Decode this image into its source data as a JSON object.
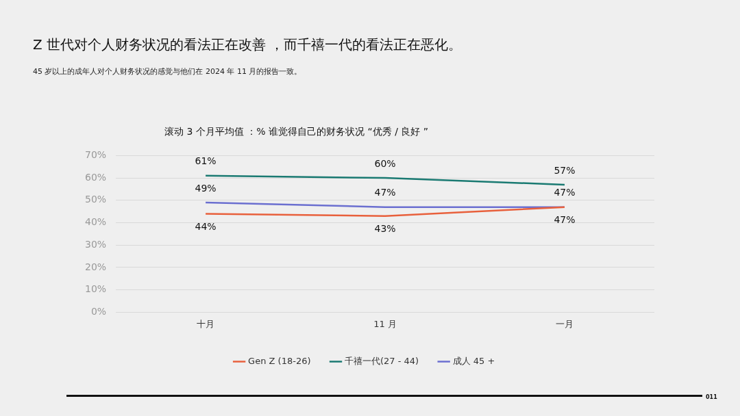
{
  "chart_data": {
    "type": "line",
    "title": "Z 世代对个人财务状况的看法正在改善 ，而千禧一代的看法正在恶化。",
    "subtitle": "45 岁以上的成年人对个人财务状况的感觉与他们在 2024 年 11 月的报告一致。",
    "annotations": [
      "滚动 3 个月平均值 ：% 谁觉得自己的财务状况 “优秀 / 良好 ”",
      "011"
    ],
    "categories": [
      "十月",
      "11 月",
      "一月"
    ],
    "series": [
      {
        "name": "Gen Z (18-26)",
        "color": "#e8603c",
        "values": [
          44,
          43,
          47
        ],
        "value_labels": [
          "44%",
          "43%",
          "47%"
        ]
      },
      {
        "name": "千禧一代(27 - 44)",
        "color": "#1a7a72",
        "values": [
          61,
          60,
          57
        ],
        "value_labels": [
          "61%",
          "60%",
          "57%"
        ]
      },
      {
        "name": "成人 45 +",
        "color": "#6b6fd0",
        "values": [
          49,
          47,
          47
        ],
        "value_labels": [
          "49%",
          "47%",
          "47%"
        ]
      }
    ],
    "ylim": [
      0,
      70
    ],
    "yticks": [
      {
        "value": 0,
        "label": "0%"
      },
      {
        "value": 10,
        "label": "10%"
      },
      {
        "value": 20,
        "label": "20%"
      },
      {
        "value": 30,
        "label": "30%"
      },
      {
        "value": 40,
        "label": "40%"
      },
      {
        "value": 50,
        "label": "50%"
      },
      {
        "value": 60,
        "label": "60%"
      },
      {
        "value": 70,
        "label": "70%"
      }
    ],
    "grid": "y",
    "legend": "bottom",
    "marker": "none",
    "line_style": "solid"
  }
}
